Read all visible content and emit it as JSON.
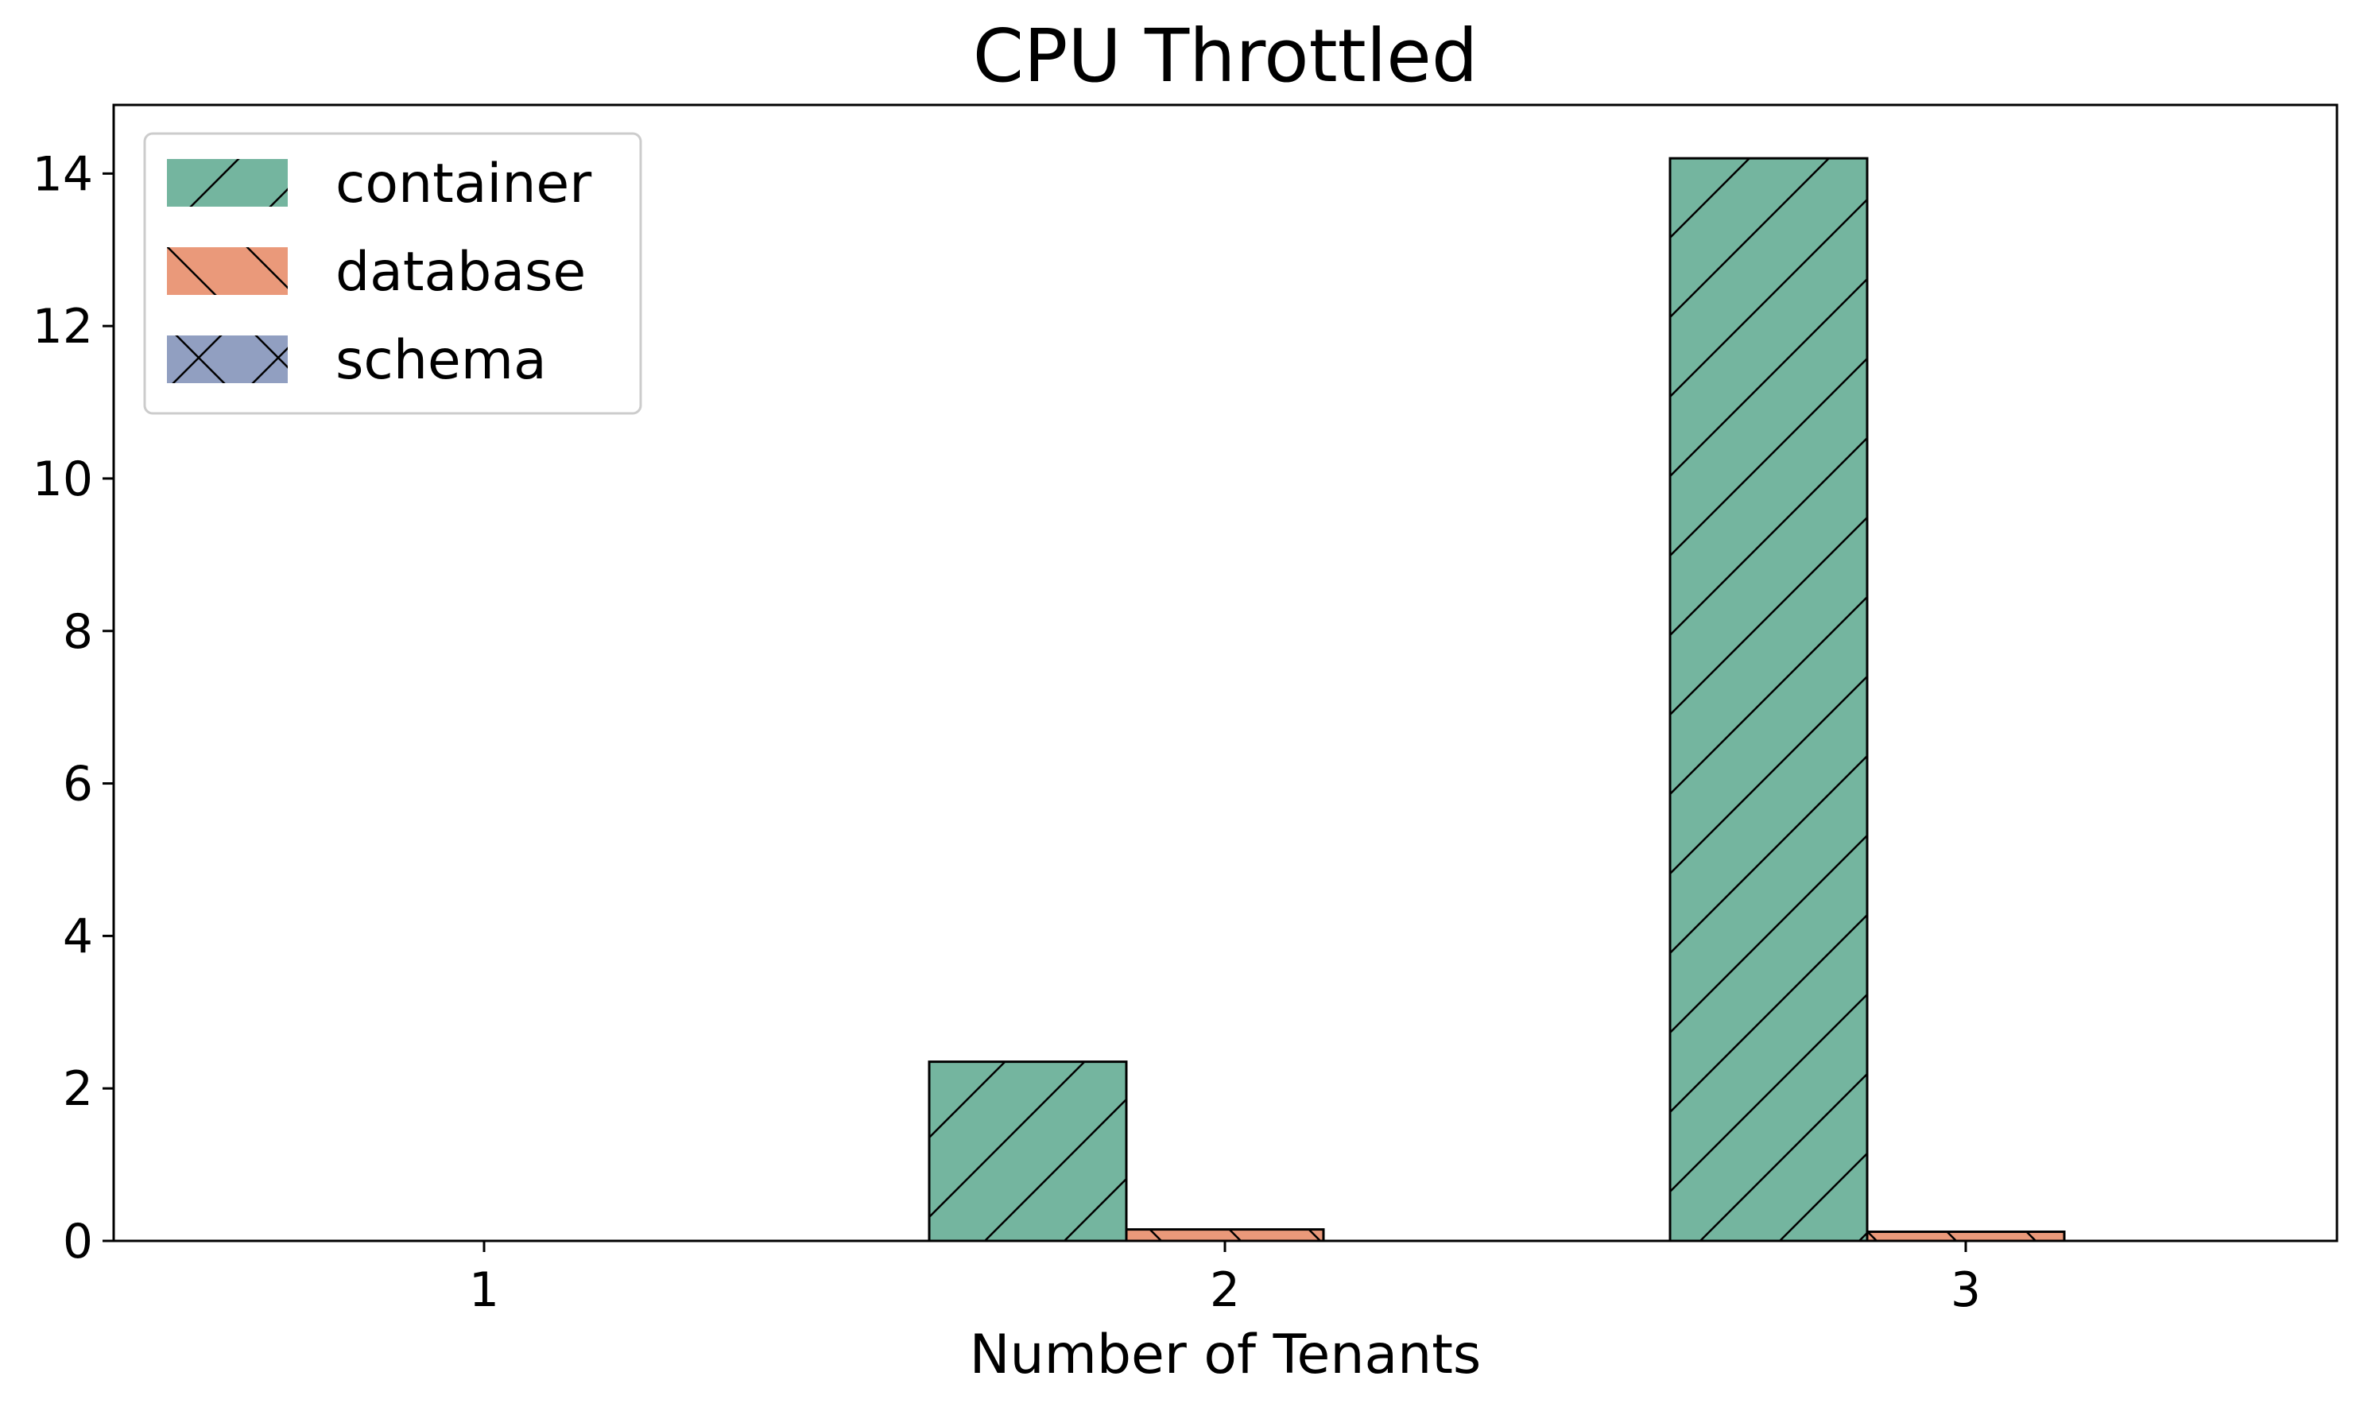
{
  "chart_data": {
    "type": "bar",
    "title": "CPU Throttled",
    "xlabel": "Number of Tenants",
    "ylabel": "",
    "categories": [
      "1",
      "2",
      "3"
    ],
    "series": [
      {
        "name": "container",
        "values": [
          0.0,
          2.35,
          14.2
        ],
        "color": "#74b59f",
        "hatch": "forward-diagonal"
      },
      {
        "name": "database",
        "values": [
          0.0,
          0.15,
          0.12
        ],
        "color": "#ea997a",
        "hatch": "back-diagonal"
      },
      {
        "name": "schema",
        "values": [
          0.0,
          0.0,
          0.0
        ],
        "color": "#919fc1",
        "hatch": "cross"
      }
    ],
    "ylim": [
      0,
      14.9
    ],
    "yticks": [
      "0",
      "2",
      "4",
      "6",
      "8",
      "10",
      "12",
      "14"
    ],
    "grid": false,
    "legend_position": "top-left"
  }
}
